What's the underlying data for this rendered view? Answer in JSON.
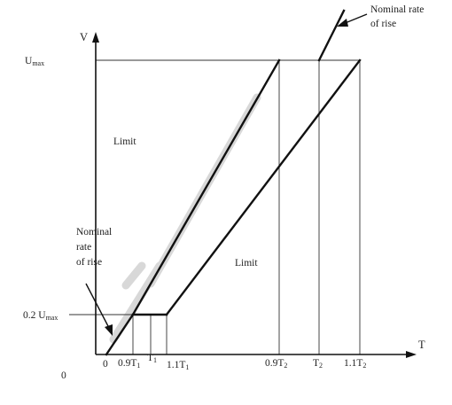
{
  "axes": {
    "y_label": "V",
    "x_label": "T"
  },
  "y_ticks": {
    "umax": {
      "main": "U",
      "sub": "max"
    },
    "two_tenths_umax": {
      "main": "0.2 U",
      "sub": "max"
    },
    "zero": "0"
  },
  "x_ticks": {
    "origin": "0",
    "t1_low": {
      "main": "0.9T",
      "sub": "1"
    },
    "t1": {
      "main": "T",
      "sub": "1"
    },
    "t1_high": {
      "main": "1.1T",
      "sub": "1"
    },
    "t2_low": {
      "main": "0.9T",
      "sub": "2"
    },
    "t2": {
      "main": "T",
      "sub": "2"
    },
    "t2_high": {
      "main": "1.1T",
      "sub": "2"
    }
  },
  "annotations": {
    "limit_upper": "Limit",
    "limit_lower": "Limit",
    "nominal_top": [
      "Nominal rate",
      "of rise"
    ],
    "nominal_bottom": [
      "Nominal",
      "rate",
      "of rise"
    ]
  },
  "colors": {
    "line": "#111111",
    "band": "#d8d8d8"
  }
}
